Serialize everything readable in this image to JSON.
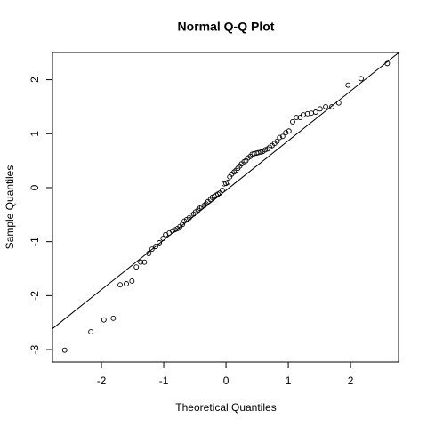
{
  "chart_data": {
    "type": "scatter",
    "title": "Normal Q-Q Plot",
    "x_label": "Theoretical Quantiles",
    "y_label": "Sample Quantiles",
    "x": [
      -2.59,
      -2.17,
      -1.96,
      -1.81,
      -1.7,
      -1.6,
      -1.51,
      -1.44,
      -1.37,
      -1.31,
      -1.24,
      -1.19,
      -1.13,
      -1.07,
      -1.01,
      -0.97,
      -0.91,
      -0.86,
      -0.82,
      -0.78,
      -0.74,
      -0.7,
      -0.67,
      -0.63,
      -0.59,
      -0.56,
      -0.52,
      -0.49,
      -0.45,
      -0.42,
      -0.39,
      -0.35,
      -0.32,
      -0.29,
      -0.25,
      -0.22,
      -0.19,
      -0.16,
      -0.13,
      -0.1,
      -0.06,
      -0.03,
      0.0,
      0.03,
      0.06,
      0.09,
      0.13,
      0.16,
      0.19,
      0.22,
      0.25,
      0.29,
      0.32,
      0.35,
      0.39,
      0.42,
      0.45,
      0.49,
      0.52,
      0.56,
      0.59,
      0.63,
      0.67,
      0.7,
      0.74,
      0.78,
      0.82,
      0.86,
      0.91,
      0.96,
      1.01,
      1.07,
      1.13,
      1.19,
      1.24,
      1.31,
      1.37,
      1.44,
      1.51,
      1.6,
      1.7,
      1.81,
      1.96,
      2.17,
      2.59
    ],
    "values": [
      -3.01,
      -2.67,
      -2.45,
      -2.42,
      -1.8,
      -1.78,
      -1.73,
      -1.47,
      -1.38,
      -1.38,
      -1.22,
      -1.14,
      -1.09,
      -1.02,
      -0.94,
      -0.87,
      -0.84,
      -0.8,
      -0.78,
      -0.76,
      -0.72,
      -0.68,
      -0.62,
      -0.59,
      -0.56,
      -0.52,
      -0.49,
      -0.45,
      -0.42,
      -0.38,
      -0.36,
      -0.33,
      -0.3,
      -0.26,
      -0.22,
      -0.18,
      -0.16,
      -0.14,
      -0.12,
      -0.1,
      -0.05,
      0.07,
      0.08,
      0.1,
      0.2,
      0.25,
      0.29,
      0.32,
      0.36,
      0.4,
      0.44,
      0.48,
      0.5,
      0.55,
      0.58,
      0.62,
      0.63,
      0.64,
      0.65,
      0.66,
      0.67,
      0.7,
      0.72,
      0.75,
      0.78,
      0.82,
      0.86,
      0.93,
      0.95,
      1.02,
      1.05,
      1.22,
      1.3,
      1.3,
      1.35,
      1.37,
      1.38,
      1.4,
      1.46,
      1.5,
      1.5,
      1.57,
      1.9,
      2.02,
      2.3
    ],
    "color": "#000000",
    "reference_line": {
      "intercept": -0.05,
      "slope": 0.92
    },
    "xlim": [
      -2.786,
      2.77
    ],
    "ylim": [
      -3.23,
      2.504
    ],
    "xticks": [
      -2,
      -1,
      0,
      1,
      2
    ],
    "yticks": [
      -3,
      -2,
      -1,
      0,
      1,
      2
    ]
  }
}
